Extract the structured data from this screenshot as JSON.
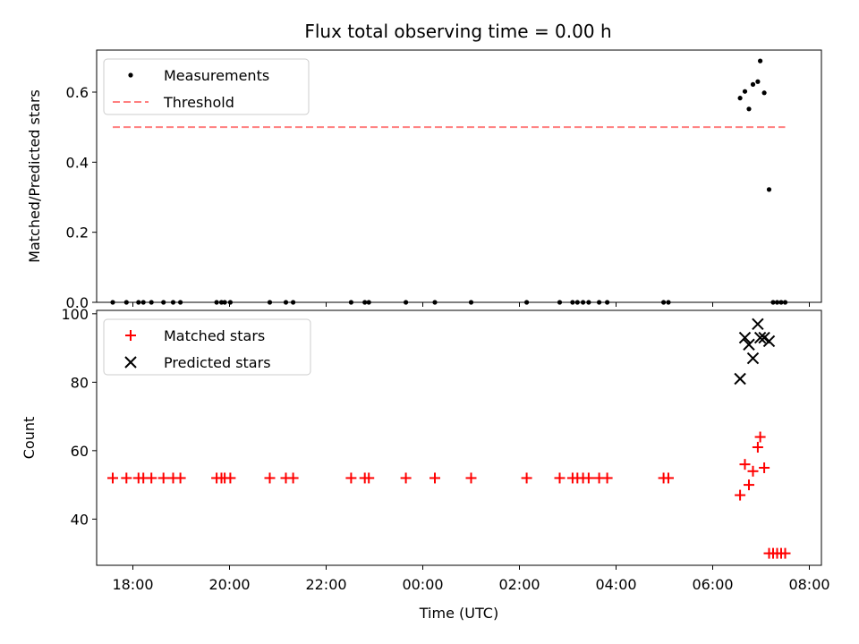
{
  "figure": {
    "title": "Flux total observing time = 0.00 h"
  },
  "colors": {
    "measurement": "#000000",
    "threshold": "#ff7f7f",
    "matched": "#ff0000",
    "predicted": "#000000"
  },
  "chart_data": [
    {
      "type": "scatter",
      "ylabel": "Matched/Predicted stars",
      "xlabel": "",
      "xlim": [
        "17:15",
        "08:15"
      ],
      "ylim": [
        0,
        0.72
      ],
      "yticks": [
        0.0,
        0.2,
        0.4,
        0.6
      ],
      "ytick_labels": [
        "0.0",
        "0.2",
        "0.4",
        "0.6"
      ],
      "legend_position": "top-left",
      "series": [
        {
          "name": "Measurements",
          "marker": "dot",
          "points": [
            [
              "17:35",
              0
            ],
            [
              "17:52",
              0
            ],
            [
              "18:07",
              0
            ],
            [
              "18:13",
              0
            ],
            [
              "18:23",
              0
            ],
            [
              "18:38",
              0
            ],
            [
              "18:50",
              0
            ],
            [
              "18:59",
              0
            ],
            [
              "19:44",
              0
            ],
            [
              "19:50",
              0
            ],
            [
              "19:54",
              0
            ],
            [
              "20:01",
              0
            ],
            [
              "20:50",
              0
            ],
            [
              "21:10",
              0
            ],
            [
              "21:19",
              0
            ],
            [
              "22:31",
              0
            ],
            [
              "22:48",
              0
            ],
            [
              "22:53",
              0
            ],
            [
              "23:39",
              0
            ],
            [
              "00:15",
              0
            ],
            [
              "01:00",
              0
            ],
            [
              "02:09",
              0
            ],
            [
              "02:50",
              0
            ],
            [
              "03:06",
              0
            ],
            [
              "03:12",
              0
            ],
            [
              "03:19",
              0
            ],
            [
              "03:26",
              0
            ],
            [
              "03:39",
              0
            ],
            [
              "03:49",
              0
            ],
            [
              "04:59",
              0
            ],
            [
              "05:05",
              0
            ],
            [
              "06:34",
              0.583
            ],
            [
              "06:40",
              0.602
            ],
            [
              "06:45",
              0.552
            ],
            [
              "06:50",
              0.622
            ],
            [
              "06:56",
              0.63
            ],
            [
              "06:59",
              0.689
            ],
            [
              "07:04",
              0.598
            ],
            [
              "07:10",
              0.322
            ],
            [
              "07:15",
              0
            ],
            [
              "07:20",
              0
            ],
            [
              "07:25",
              0
            ],
            [
              "07:30",
              0
            ]
          ]
        },
        {
          "name": "Threshold",
          "marker": "dashed-line",
          "points": [
            [
              "17:35",
              0.5
            ],
            [
              "07:30",
              0.5
            ]
          ]
        }
      ]
    },
    {
      "type": "scatter",
      "ylabel": "Count",
      "xlabel": "Time (UTC)",
      "xlim": [
        "17:15",
        "08:15"
      ],
      "ylim": [
        26.5,
        101
      ],
      "yticks": [
        40,
        60,
        80,
        100
      ],
      "ytick_labels": [
        "40",
        "60",
        "80",
        "100"
      ],
      "xticks": [
        "18:00",
        "20:00",
        "22:00",
        "00:00",
        "02:00",
        "04:00",
        "06:00",
        "08:00"
      ],
      "legend_position": "top-left",
      "series": [
        {
          "name": "Matched stars",
          "marker": "plus",
          "points": [
            [
              "17:35",
              52
            ],
            [
              "17:52",
              52
            ],
            [
              "18:07",
              52
            ],
            [
              "18:13",
              52
            ],
            [
              "18:23",
              52
            ],
            [
              "18:38",
              52
            ],
            [
              "18:50",
              52
            ],
            [
              "18:59",
              52
            ],
            [
              "19:44",
              52
            ],
            [
              "19:50",
              52
            ],
            [
              "19:54",
              52
            ],
            [
              "20:01",
              52
            ],
            [
              "20:50",
              52
            ],
            [
              "21:10",
              52
            ],
            [
              "21:19",
              52
            ],
            [
              "22:31",
              52
            ],
            [
              "22:48",
              52
            ],
            [
              "22:53",
              52
            ],
            [
              "23:39",
              52
            ],
            [
              "00:15",
              52
            ],
            [
              "01:00",
              52
            ],
            [
              "02:09",
              52
            ],
            [
              "02:50",
              52
            ],
            [
              "03:06",
              52
            ],
            [
              "03:12",
              52
            ],
            [
              "03:19",
              52
            ],
            [
              "03:26",
              52
            ],
            [
              "03:39",
              52
            ],
            [
              "03:49",
              52
            ],
            [
              "04:59",
              52
            ],
            [
              "05:05",
              52
            ],
            [
              "06:34",
              47
            ],
            [
              "06:40",
              56
            ],
            [
              "06:45",
              50
            ],
            [
              "06:50",
              54
            ],
            [
              "06:56",
              61
            ],
            [
              "06:59",
              64
            ],
            [
              "07:04",
              55
            ],
            [
              "07:10",
              30
            ],
            [
              "07:15",
              30
            ],
            [
              "07:20",
              30
            ],
            [
              "07:25",
              30
            ],
            [
              "07:30",
              30
            ]
          ]
        },
        {
          "name": "Predicted stars",
          "marker": "x",
          "points": [
            [
              "06:34",
              81
            ],
            [
              "06:40",
              93
            ],
            [
              "06:45",
              91
            ],
            [
              "06:50",
              87
            ],
            [
              "06:56",
              97
            ],
            [
              "06:59",
              93
            ],
            [
              "07:04",
              93
            ],
            [
              "07:10",
              92
            ]
          ]
        }
      ]
    }
  ]
}
